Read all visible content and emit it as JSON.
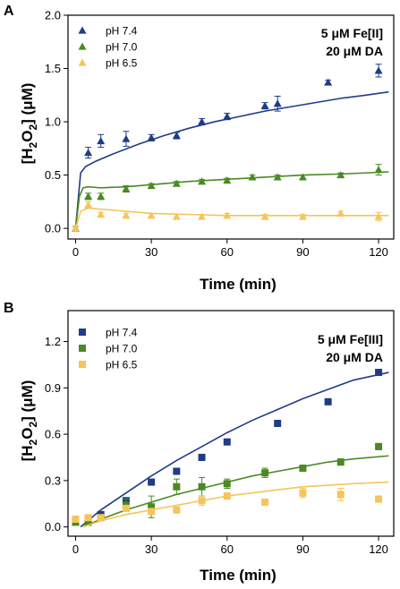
{
  "chart_data": [
    {
      "type": "scatter",
      "panel": "A",
      "title": "",
      "xlabel": "Time (min)",
      "ylabel": "[H2O2] (μM)",
      "ylabel_parts": [
        "[H",
        "2",
        "O",
        "2",
        "] (μM)"
      ],
      "xlim": [
        -3,
        126
      ],
      "ylim": [
        -0.1,
        2.0
      ],
      "xticks": [
        0,
        30,
        60,
        90,
        120
      ],
      "yticks": [
        0.0,
        0.5,
        1.0,
        1.5,
        2.0
      ],
      "ytick_labels": [
        "0.0",
        "0.5",
        "1.0",
        "1.5",
        "2.0"
      ],
      "marker": "triangle",
      "legend_position": "top-left",
      "annotations": [
        "5 μM Fe[II]",
        "20 μM DA"
      ],
      "series": [
        {
          "name": "pH 7.4",
          "color": "#1f3c88",
          "x": [
            0,
            5,
            10,
            20,
            30,
            40,
            50,
            60,
            75,
            80,
            100,
            120
          ],
          "y": [
            0.0,
            0.71,
            0.82,
            0.84,
            0.85,
            0.87,
            1.0,
            1.05,
            1.15,
            1.17,
            1.37,
            1.48
          ],
          "err": [
            0.02,
            0.05,
            0.06,
            0.07,
            0.03,
            0.03,
            0.03,
            0.03,
            0.03,
            0.07,
            0.02,
            0.06
          ],
          "fit": [
            [
              0,
              0
            ],
            [
              2,
              0.52
            ],
            [
              4,
              0.58
            ],
            [
              8,
              0.63
            ],
            [
              15,
              0.7
            ],
            [
              25,
              0.79
            ],
            [
              35,
              0.87
            ],
            [
              45,
              0.94
            ],
            [
              55,
              1.0
            ],
            [
              65,
              1.05
            ],
            [
              75,
              1.1
            ],
            [
              85,
              1.14
            ],
            [
              95,
              1.18
            ],
            [
              105,
              1.22
            ],
            [
              115,
              1.25
            ],
            [
              124,
              1.28
            ]
          ]
        },
        {
          "name": "pH 7.0",
          "color": "#4a8a22",
          "x": [
            0,
            5,
            10,
            20,
            30,
            40,
            50,
            60,
            70,
            80,
            90,
            105,
            120
          ],
          "y": [
            0.0,
            0.3,
            0.3,
            0.37,
            0.4,
            0.42,
            0.44,
            0.45,
            0.48,
            0.48,
            0.48,
            0.5,
            0.55
          ],
          "err": [
            0.02,
            0.03,
            0.03,
            0.03,
            0.02,
            0.02,
            0.02,
            0.02,
            0.02,
            0.02,
            0.02,
            0.02,
            0.05
          ],
          "fit": [
            [
              0,
              0
            ],
            [
              1.5,
              0.3
            ],
            [
              3,
              0.38
            ],
            [
              5,
              0.39
            ],
            [
              10,
              0.38
            ],
            [
              20,
              0.39
            ],
            [
              30,
              0.41
            ],
            [
              45,
              0.44
            ],
            [
              60,
              0.46
            ],
            [
              75,
              0.48
            ],
            [
              90,
              0.5
            ],
            [
              105,
              0.51
            ],
            [
              124,
              0.53
            ]
          ]
        },
        {
          "name": "pH 6.5",
          "color": "#f5c55a",
          "x": [
            0,
            5,
            10,
            20,
            30,
            40,
            50,
            60,
            75,
            90,
            105,
            120
          ],
          "y": [
            0.0,
            0.22,
            0.13,
            0.12,
            0.12,
            0.11,
            0.11,
            0.12,
            0.11,
            0.11,
            0.14,
            0.11
          ],
          "err": [
            0.02,
            0.03,
            0.02,
            0.02,
            0.02,
            0.02,
            0.02,
            0.02,
            0.02,
            0.02,
            0.02,
            0.04
          ],
          "fit": [
            [
              0,
              0
            ],
            [
              2,
              0.16
            ],
            [
              5,
              0.19
            ],
            [
              10,
              0.18
            ],
            [
              20,
              0.16
            ],
            [
              30,
              0.14
            ],
            [
              45,
              0.13
            ],
            [
              60,
              0.12
            ],
            [
              80,
              0.12
            ],
            [
              100,
              0.12
            ],
            [
              124,
              0.12
            ]
          ]
        }
      ]
    },
    {
      "type": "scatter",
      "panel": "B",
      "title": "",
      "xlabel": "Time (min)",
      "ylabel": "[H2O2] (μM)",
      "ylabel_parts": [
        "[H",
        "2",
        "O",
        "2",
        "] (μM)"
      ],
      "xlim": [
        -3,
        126
      ],
      "ylim": [
        -0.06,
        1.4
      ],
      "xticks": [
        0,
        30,
        60,
        90,
        120
      ],
      "yticks": [
        0.0,
        0.3,
        0.6,
        0.9,
        1.2
      ],
      "ytick_labels": [
        "0.0",
        "0.3",
        "0.6",
        "0.9",
        "1.2"
      ],
      "marker": "square",
      "legend_position": "top-left",
      "annotations": [
        "5 μM  Fe[III]",
        "20 μM DA"
      ],
      "series": [
        {
          "name": "pH 7.4",
          "color": "#1f3c88",
          "x": [
            0,
            5,
            10,
            20,
            30,
            40,
            50,
            60,
            80,
            100,
            120
          ],
          "y": [
            0.04,
            0.05,
            0.08,
            0.17,
            0.29,
            0.36,
            0.45,
            0.55,
            0.67,
            0.81,
            1.0
          ],
          "err": [
            0.01,
            0.01,
            0.01,
            0.01,
            0.01,
            0.01,
            0.01,
            0.01,
            0.01,
            0.01,
            0.01
          ],
          "fit": [
            [
              2,
              0
            ],
            [
              10,
              0.11
            ],
            [
              20,
              0.22
            ],
            [
              30,
              0.33
            ],
            [
              40,
              0.43
            ],
            [
              50,
              0.52
            ],
            [
              60,
              0.61
            ],
            [
              70,
              0.69
            ],
            [
              80,
              0.76
            ],
            [
              90,
              0.83
            ],
            [
              100,
              0.89
            ],
            [
              110,
              0.95
            ],
            [
              124,
              1.0
            ]
          ]
        },
        {
          "name": "pH 7.0",
          "color": "#4a8a22",
          "x": [
            0,
            5,
            10,
            20,
            30,
            40,
            50,
            60,
            75,
            90,
            105,
            120
          ],
          "y": [
            0.03,
            0.03,
            0.06,
            0.14,
            0.13,
            0.26,
            0.26,
            0.28,
            0.35,
            0.38,
            0.42,
            0.52
          ],
          "err": [
            0.01,
            0.01,
            0.02,
            0.04,
            0.07,
            0.05,
            0.06,
            0.03,
            0.03,
            0.02,
            0.02,
            0.02
          ],
          "fit": [
            [
              3,
              0
            ],
            [
              10,
              0.05
            ],
            [
              20,
              0.11
            ],
            [
              30,
              0.16
            ],
            [
              40,
              0.21
            ],
            [
              50,
              0.25
            ],
            [
              60,
              0.29
            ],
            [
              70,
              0.33
            ],
            [
              80,
              0.36
            ],
            [
              90,
              0.39
            ],
            [
              100,
              0.42
            ],
            [
              110,
              0.44
            ],
            [
              124,
              0.46
            ]
          ]
        },
        {
          "name": "pH 6.5",
          "color": "#f5c55a",
          "x": [
            0,
            5,
            10,
            20,
            30,
            40,
            50,
            60,
            75,
            90,
            105,
            120
          ],
          "y": [
            0.05,
            0.06,
            0.06,
            0.12,
            0.1,
            0.11,
            0.17,
            0.2,
            0.16,
            0.22,
            0.21,
            0.18
          ],
          "err": [
            0.01,
            0.01,
            0.01,
            0.02,
            0.02,
            0.02,
            0.03,
            0.02,
            0.02,
            0.03,
            0.04,
            0.02
          ],
          "fit": [
            [
              3,
              0
            ],
            [
              10,
              0.04
            ],
            [
              20,
              0.08
            ],
            [
              30,
              0.11
            ],
            [
              40,
              0.14
            ],
            [
              50,
              0.17
            ],
            [
              60,
              0.2
            ],
            [
              70,
              0.22
            ],
            [
              80,
              0.24
            ],
            [
              90,
              0.26
            ],
            [
              100,
              0.27
            ],
            [
              110,
              0.28
            ],
            [
              124,
              0.29
            ]
          ]
        }
      ]
    }
  ]
}
